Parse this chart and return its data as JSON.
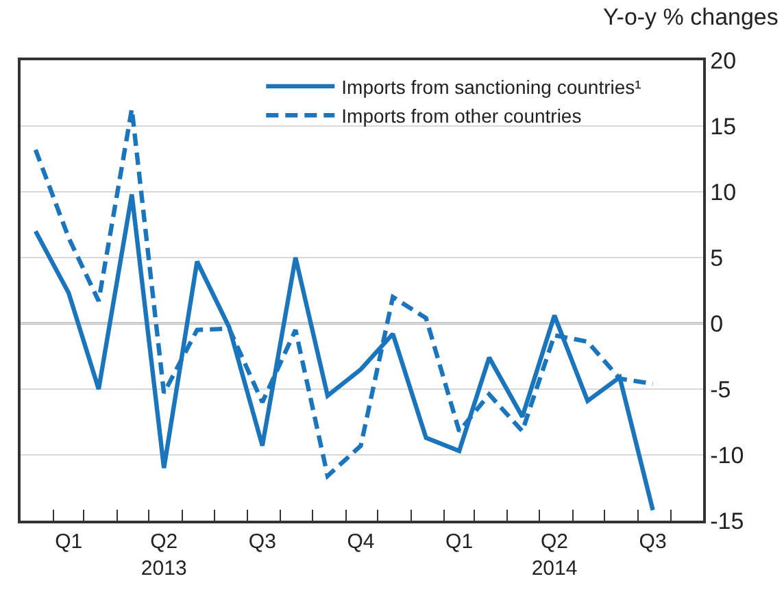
{
  "chart_data": {
    "type": "line",
    "ylabel": "Y-o-y % changes",
    "x": [
      "2013-01-15",
      "2013-02-15",
      "2013-03-15",
      "2013-04-15",
      "2013-05-15",
      "2013-06-15",
      "2013-07-15",
      "2013-08-15",
      "2013-09-15",
      "2013-10-15",
      "2013-11-15",
      "2013-12-15",
      "2014-01-15",
      "2014-02-15",
      "2014-03-15",
      "2014-04-15",
      "2014-05-15",
      "2014-06-15",
      "2014-07-15",
      "2014-08-15"
    ],
    "series": [
      {
        "name": "Imports from sanctioning countries¹",
        "color": "#1a75bc",
        "line_style": "solid",
        "values": [
          7.0,
          2.3,
          -5.0,
          9.8,
          -11.0,
          4.7,
          -0.3,
          -9.3,
          5.0,
          -5.5,
          -3.5,
          -0.8,
          -8.7,
          -9.7,
          -2.6,
          -7.1,
          0.6,
          -5.9,
          -4.1,
          -14.2
        ]
      },
      {
        "name": "Imports from other countries",
        "color": "#1a75bc",
        "line_style": "dashed",
        "values": [
          13.2,
          6.5,
          1.7,
          16.3,
          -5.3,
          -0.5,
          -0.4,
          -6.0,
          -0.5,
          -11.6,
          -9.3,
          2.0,
          0.4,
          -8.2,
          -5.4,
          -8.2,
          -0.9,
          -1.4,
          -4.2,
          -4.6
        ]
      }
    ],
    "xlim": [
      "2013-01-01",
      "2014-10-01"
    ],
    "xticks": [
      {
        "value": "2013-02-15",
        "label": "Q1"
      },
      {
        "value": "2013-05-15",
        "label": "Q2\n2013"
      },
      {
        "value": "2013-08-15",
        "label": "Q3"
      },
      {
        "value": "2013-11-15",
        "label": "Q4"
      },
      {
        "value": "2014-02-15",
        "label": "Q1"
      },
      {
        "value": "2014-05-15",
        "label": "Q2\n2014"
      },
      {
        "value": "2014-08-15",
        "label": "Q3"
      },
      {
        "value": "2013-02-01",
        "label": null
      },
      {
        "value": "2013-03-01",
        "label": null
      },
      {
        "value": "2013-04-01",
        "label": null
      },
      {
        "value": "2013-05-01",
        "label": null
      },
      {
        "value": "2013-06-01",
        "label": null
      },
      {
        "value": "2013-07-01",
        "label": null
      },
      {
        "value": "2013-08-01",
        "label": null
      },
      {
        "value": "2013-09-01",
        "label": null
      },
      {
        "value": "2013-10-01",
        "label": null
      },
      {
        "value": "2013-11-01",
        "label": null
      },
      {
        "value": "2013-12-01",
        "label": null
      },
      {
        "value": "2014-01-01",
        "label": null
      },
      {
        "value": "2014-02-01",
        "label": null
      },
      {
        "value": "2014-03-01",
        "label": null
      },
      {
        "value": "2014-04-01",
        "label": null
      },
      {
        "value": "2014-05-01",
        "label": null
      },
      {
        "value": "2014-06-01",
        "label": null
      },
      {
        "value": "2014-07-01",
        "label": null
      },
      {
        "value": "2014-08-01",
        "label": null
      },
      {
        "value": "2014-09-01",
        "label": null
      }
    ],
    "ylim": [
      -15,
      20
    ],
    "yticks": [
      -15,
      -10,
      -5,
      0,
      5,
      10,
      15,
      20
    ],
    "ref_lines": [
      {
        "axis": "y",
        "value": 0,
        "color": "#000000"
      }
    ],
    "grid": "y",
    "legend": "top right",
    "marker": "none"
  }
}
